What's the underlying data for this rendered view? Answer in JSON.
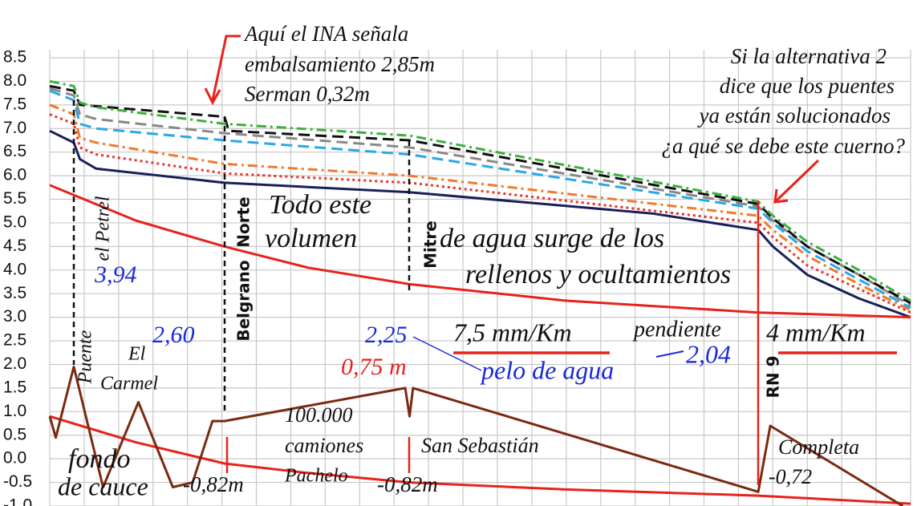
{
  "chart_data": {
    "type": "line",
    "xlim": [
      0,
      100
    ],
    "ylim": [
      -1,
      8.5
    ],
    "xticks": [
      0,
      4,
      8,
      12,
      16,
      20,
      24,
      28,
      32,
      36,
      40,
      44,
      48,
      52,
      56,
      60,
      64,
      68,
      72,
      76,
      80,
      84,
      88,
      92,
      96,
      100
    ],
    "yticks": [
      {
        "value": -1,
        "label": "-1.0"
      },
      -0.5,
      {
        "value": 0,
        "label": "0.0"
      },
      0.5,
      {
        "value": 1,
        "label": "1.0"
      },
      1.5,
      {
        "value": 2,
        "label": "2.0"
      },
      2.5,
      {
        "value": 3,
        "label": "3.0"
      },
      3.5,
      {
        "value": 4,
        "label": "4.0"
      },
      4.5,
      {
        "value": 5,
        "label": "5.0"
      },
      5.5,
      {
        "value": 6,
        "label": "6.0"
      },
      6.5,
      {
        "value": 7,
        "label": "7.0"
      },
      7.5,
      {
        "value": 8,
        "label": "8.0"
      },
      8.5
    ],
    "grid": true,
    "series": [
      {
        "color": "#1a1f5a",
        "style": "solid",
        "x": [
          0,
          2.8,
          3.5,
          5.4,
          20.3,
          41.8,
          70,
          82.3,
          84,
          88,
          94,
          100
        ],
        "values": [
          6.95,
          6.7,
          6.35,
          6.15,
          5.85,
          5.65,
          5.2,
          4.85,
          4.5,
          3.9,
          3.4,
          3.0
        ]
      },
      {
        "color": "#e8322a",
        "style": "dotted",
        "x": [
          0,
          2.8,
          3.5,
          5.4,
          20.3,
          41.8,
          82.3,
          84,
          88,
          94,
          100
        ],
        "values": [
          7.3,
          7.1,
          6.6,
          6.45,
          6.05,
          5.85,
          5.0,
          4.7,
          4.1,
          3.6,
          3.1
        ]
      },
      {
        "color": "#f07a2a",
        "style": "dashdot",
        "x": [
          0,
          2.8,
          3.5,
          5.4,
          20.3,
          41.8,
          82.3,
          84,
          88,
          94,
          100
        ],
        "values": [
          7.5,
          7.3,
          6.8,
          6.7,
          6.25,
          6.0,
          5.15,
          4.85,
          4.3,
          3.7,
          3.15
        ]
      },
      {
        "color": "#2aa7e8",
        "style": "dashed",
        "x": [
          0,
          2.8,
          3.5,
          5.4,
          20.3,
          41.8,
          82.3,
          84,
          88,
          94,
          100
        ],
        "values": [
          7.8,
          7.6,
          7.1,
          7.0,
          6.75,
          6.45,
          5.3,
          5.0,
          4.4,
          3.8,
          3.2
        ]
      },
      {
        "color": "#888888",
        "style": "dashed",
        "x": [
          0,
          2.8,
          3.5,
          5.4,
          20.3,
          41.8,
          82.3,
          84,
          88,
          94,
          100
        ],
        "values": [
          7.85,
          7.7,
          7.3,
          7.2,
          6.9,
          6.6,
          5.35,
          5.05,
          4.5,
          3.9,
          3.25
        ]
      },
      {
        "color": "#111111",
        "style": "dashed",
        "x": [
          0,
          2.8,
          3.5,
          20.3,
          20.8,
          41.8,
          82.3,
          84,
          88,
          94,
          100
        ],
        "values": [
          7.9,
          7.8,
          7.5,
          7.25,
          6.95,
          6.75,
          5.4,
          5.1,
          4.5,
          3.9,
          3.3
        ]
      },
      {
        "color": "#3cb040",
        "style": "dashdot",
        "x": [
          0,
          2.8,
          3.5,
          5.4,
          20.3,
          41.8,
          82.3,
          84,
          88,
          94,
          100
        ],
        "values": [
          8.0,
          7.9,
          7.55,
          7.45,
          7.1,
          6.85,
          5.45,
          5.15,
          4.6,
          4.0,
          3.35
        ]
      },
      {
        "color": "#e8221a",
        "style": "solid",
        "x": [
          0,
          10,
          20.3,
          30,
          41.8,
          60,
          82.3,
          100
        ],
        "values": [
          5.8,
          5.05,
          4.5,
          4.05,
          3.7,
          3.35,
          3.1,
          3.0
        ]
      },
      {
        "color": "#e8221a",
        "style": "solid",
        "x": [
          0,
          10,
          20.3,
          30,
          41.8,
          60,
          82.3,
          100
        ],
        "values": [
          0.9,
          0.35,
          -0.1,
          -0.3,
          -0.5,
          -0.65,
          -0.78,
          -0.95
        ]
      },
      {
        "color": "#7a2a10",
        "style": "solid",
        "x": [
          0,
          0.7,
          2.8,
          6.2,
          10.3,
          14.3,
          16.6,
          18.9,
          20.3,
          41.3,
          41.8,
          42.2,
          82.3,
          83.7,
          99.1
        ],
        "values": [
          0.9,
          0.45,
          1.95,
          -0.6,
          1.2,
          -0.6,
          -0.5,
          0.8,
          0.8,
          1.5,
          0.9,
          1.5,
          -0.7,
          0.7,
          -1.0
        ]
      }
    ],
    "annotations": [
      "Aquí el INA señala",
      "embalsamiento 2,85m",
      "Serman 0,32m",
      "Si la alternativa 2",
      "dice que los puentes",
      "ya están solucionados",
      "¿a qué se debe este cuerno?",
      "Todo este",
      "volumen",
      "de agua surge de los",
      "rellenos y ocultamientos",
      "3,94",
      "Puente",
      "el Petrel",
      "Belgrano",
      "Norte",
      "Mitre",
      "2,60",
      "El",
      "Carmel",
      "2,25",
      "7,5 mm/Km",
      "pendiente",
      "4 mm/Km",
      "0,75 m",
      "pelo de agua",
      "2,04",
      "RN 9",
      "100.000",
      "camiones",
      "Pachelo",
      "San Sebastián",
      "fondo",
      "de cauce",
      "-0,82m",
      "-0,82m",
      "Completa",
      "-0,72"
    ]
  }
}
